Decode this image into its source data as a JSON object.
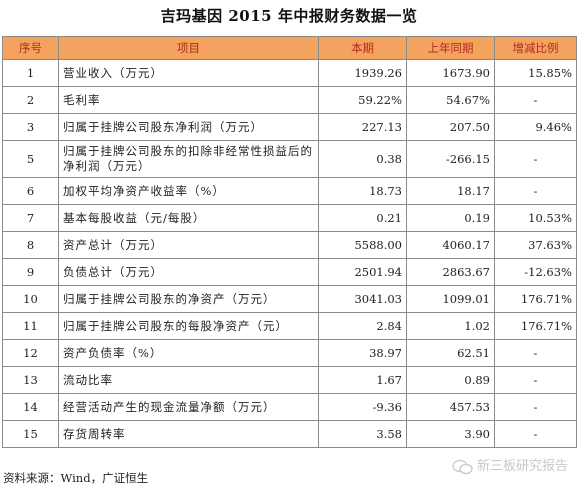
{
  "title": "吉玛基因 2015 年中报财务数据一览",
  "table": {
    "headers": [
      "序号",
      "项目",
      "本期",
      "上年同期",
      "增减比例"
    ],
    "rows": [
      {
        "no": "1",
        "item": "营业收入（万元）",
        "current": "1939.26",
        "prior": "1673.90",
        "change": "15.85%"
      },
      {
        "no": "2",
        "item": "毛利率",
        "current": "59.22%",
        "prior": "54.67%",
        "change": "-"
      },
      {
        "no": "3",
        "item": "归属于挂牌公司股东净利润（万元）",
        "current": "227.13",
        "prior": "207.50",
        "change": "9.46%"
      },
      {
        "no": "5",
        "item": "归属于挂牌公司股东的扣除非经常性损益后的净利润（万元）",
        "current": "0.38",
        "prior": "-266.15",
        "change": "-"
      },
      {
        "no": "6",
        "item": "加权平均净资产收益率（%）",
        "current": "18.73",
        "prior": "18.17",
        "change": "-"
      },
      {
        "no": "7",
        "item": "基本每股收益（元/每股）",
        "current": "0.21",
        "prior": "0.19",
        "change": "10.53%"
      },
      {
        "no": "8",
        "item": "资产总计（万元）",
        "current": "5588.00",
        "prior": "4060.17",
        "change": "37.63%"
      },
      {
        "no": "9",
        "item": "负债总计（万元）",
        "current": "2501.94",
        "prior": "2863.67",
        "change": "-12.63%"
      },
      {
        "no": "10",
        "item": "归属于挂牌公司股东的净资产（万元）",
        "current": "3041.03",
        "prior": "1099.01",
        "change": "176.71%"
      },
      {
        "no": "11",
        "item": "归属于挂牌公司股东的每股净资产（元）",
        "current": "2.84",
        "prior": "1.02",
        "change": "176.71%"
      },
      {
        "no": "12",
        "item": "资产负债率（%）",
        "current": "38.97",
        "prior": "62.51",
        "change": "-"
      },
      {
        "no": "13",
        "item": "流动比率",
        "current": "1.67",
        "prior": "0.89",
        "change": "-"
      },
      {
        "no": "14",
        "item": "经营活动产生的现金流量净额（万元）",
        "current": "-9.36",
        "prior": "457.53",
        "change": "-"
      },
      {
        "no": "15",
        "item": "存货周转率",
        "current": "3.58",
        "prior": "3.90",
        "change": "-"
      }
    ]
  },
  "source": "资料来源：Wind，广证恒生",
  "watermark": "新三板研究报告",
  "colors": {
    "header_bg": "#f4a35f",
    "header_text": "#b22a1c"
  }
}
